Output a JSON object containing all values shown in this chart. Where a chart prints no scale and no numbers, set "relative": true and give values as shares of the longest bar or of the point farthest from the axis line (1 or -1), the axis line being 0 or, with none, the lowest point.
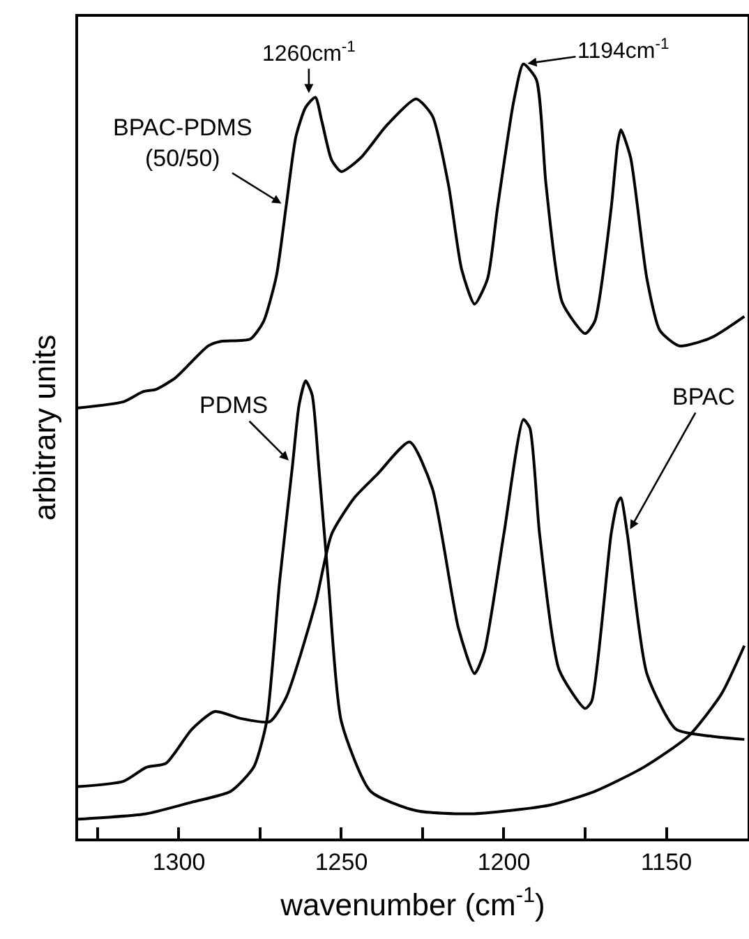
{
  "chart_data": {
    "type": "line",
    "xlabel": "wavenumber (cm$^{-1}$)",
    "ylabel": "arbitrary units",
    "relative": true,
    "xlim": [
      1331,
      1125
    ],
    "xticks": [
      {
        "value": 1325,
        "label": null
      },
      1300,
      {
        "value": 1275,
        "label": null
      },
      1250,
      {
        "value": 1225,
        "label": null
      },
      1200,
      {
        "value": 1175,
        "label": null
      },
      1150
    ],
    "legend": false,
    "grid": false,
    "marker": "none",
    "line_style": "solid",
    "tick_labels": "x",
    "series": [
      {
        "name": "BPAC-PDMS (50/50)",
        "color": "#000000",
        "x": [
          1331,
          1317,
          1311,
          1307,
          1301,
          1291,
          1287,
          1278,
          1274,
          1270,
          1267,
          1264,
          1261,
          1258,
          1256,
          1253,
          1250,
          1244,
          1236,
          1227,
          1222,
          1217,
          1213,
          1209,
          1205,
          1202,
          1197,
          1194,
          1190,
          1187,
          1182,
          1175,
          1172,
          1167,
          1165,
          1164,
          1161,
          1156,
          1152,
          1146,
          1136,
          1126
        ],
        "values": [
          0.556,
          0.564,
          0.577,
          0.58,
          0.595,
          0.636,
          0.642,
          0.645,
          0.667,
          0.726,
          0.816,
          0.906,
          0.944,
          0.957,
          0.926,
          0.876,
          0.861,
          0.879,
          0.921,
          0.955,
          0.933,
          0.843,
          0.735,
          0.69,
          0.723,
          0.813,
          0.951,
          1.0,
          0.98,
          0.843,
          0.692,
          0.652,
          0.668,
          0.813,
          0.897,
          0.915,
          0.879,
          0.723,
          0.656,
          0.636,
          0.647,
          0.674
        ]
      },
      {
        "name": "PDMS",
        "color": "#000000",
        "x": [
          1331,
          1310,
          1296,
          1284,
          1277,
          1273,
          1269,
          1265,
          1263,
          1261,
          1259,
          1257,
          1254,
          1250,
          1241,
          1227,
          1210,
          1186,
          1172,
          1157,
          1143,
          1133,
          1126
        ],
        "values": [
          0.025,
          0.032,
          0.047,
          0.061,
          0.092,
          0.151,
          0.332,
          0.483,
          0.56,
          0.591,
          0.573,
          0.483,
          0.332,
          0.151,
          0.061,
          0.036,
          0.032,
          0.043,
          0.061,
          0.092,
          0.133,
          0.187,
          0.249
        ]
      },
      {
        "name": "BPAC",
        "color": "#000000",
        "x": [
          1331,
          1317,
          1310,
          1304,
          1296,
          1289,
          1281,
          1272,
          1267,
          1258,
          1253,
          1246,
          1239,
          1229,
          1222,
          1214,
          1209,
          1206,
          1200,
          1194,
          1192,
          1189,
          1183,
          1175,
          1173,
          1167,
          1165,
          1164,
          1162,
          1156,
          1147,
          1136,
          1126
        ],
        "values": [
          0.067,
          0.074,
          0.092,
          0.097,
          0.141,
          0.164,
          0.155,
          0.151,
          0.182,
          0.303,
          0.393,
          0.44,
          0.47,
          0.512,
          0.452,
          0.272,
          0.213,
          0.241,
          0.393,
          0.541,
          0.53,
          0.393,
          0.218,
          0.168,
          0.177,
          0.393,
          0.434,
          0.44,
          0.393,
          0.213,
          0.141,
          0.132,
          0.128
        ]
      }
    ],
    "annotations": [
      {
        "text": "1260cm$^{-1}$",
        "x": 1260,
        "y": 0.957
      },
      {
        "text": "1194cm$^{-1}$",
        "x": 1194,
        "y": 1.0
      }
    ]
  }
}
